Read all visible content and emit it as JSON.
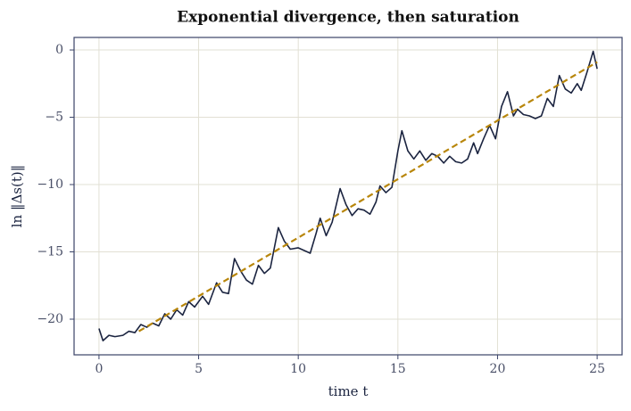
{
  "chart_data": {
    "type": "line",
    "title": "Exponential divergence, then saturation",
    "xlabel": "time t",
    "ylabel": "ln ‖Δs(t)‖",
    "xlim": [
      -1.25,
      26.25
    ],
    "ylim": [
      -22.65,
      0.93
    ],
    "xticks": [
      0,
      5,
      10,
      15,
      20,
      25
    ],
    "yticks": [
      {
        "value": -20,
        "label": "−20"
      },
      {
        "value": -15,
        "label": "−15"
      },
      {
        "value": -10,
        "label": "−10"
      },
      {
        "value": -5,
        "label": "−5"
      },
      0
    ],
    "grid": true,
    "series": [
      {
        "color": "#1b2440",
        "style": "solid",
        "x": [
          0,
          0.2,
          0.5,
          0.8,
          1.2,
          1.5,
          1.8,
          2.1,
          2.4,
          2.7,
          3.0,
          3.3,
          3.6,
          3.9,
          4.2,
          4.5,
          4.8,
          5.2,
          5.5,
          5.9,
          6.2,
          6.5,
          6.8,
          7.1,
          7.4,
          7.7,
          8.0,
          8.3,
          8.6,
          9.0,
          9.3,
          9.6,
          10.0,
          10.3,
          10.6,
          10.9,
          11.1,
          11.4,
          11.7,
          12.1,
          12.4,
          12.7,
          13.0,
          13.3,
          13.6,
          13.9,
          14.1,
          14.4,
          14.7,
          15.0,
          15.2,
          15.5,
          15.8,
          16.1,
          16.4,
          16.7,
          17.0,
          17.3,
          17.6,
          17.9,
          18.2,
          18.5,
          18.8,
          19.0,
          19.3,
          19.6,
          19.9,
          20.2,
          20.5,
          20.8,
          21.0,
          21.3,
          21.6,
          21.9,
          22.2,
          22.5,
          22.8,
          23.1,
          23.4,
          23.7,
          24.0,
          24.2,
          24.5,
          24.8,
          25.0
        ],
        "values": [
          -20.7,
          -21.6,
          -21.2,
          -21.3,
          -21.2,
          -20.9,
          -21.0,
          -20.4,
          -20.6,
          -20.3,
          -20.5,
          -19.6,
          -20.0,
          -19.3,
          -19.7,
          -18.7,
          -19.1,
          -18.3,
          -18.9,
          -17.3,
          -18.0,
          -18.1,
          -15.5,
          -16.4,
          -17.1,
          -17.4,
          -16.0,
          -16.6,
          -16.2,
          -13.2,
          -14.2,
          -14.8,
          -14.7,
          -14.9,
          -15.1,
          -13.6,
          -12.5,
          -13.8,
          -12.8,
          -10.3,
          -11.5,
          -12.3,
          -11.8,
          -11.9,
          -12.2,
          -11.3,
          -10.1,
          -10.6,
          -10.2,
          -7.5,
          -6.0,
          -7.5,
          -8.1,
          -7.5,
          -8.2,
          -7.7,
          -7.9,
          -8.4,
          -7.9,
          -8.3,
          -8.4,
          -8.1,
          -6.9,
          -7.7,
          -6.6,
          -5.6,
          -6.6,
          -4.2,
          -3.1,
          -4.9,
          -4.4,
          -4.8,
          -4.9,
          -5.1,
          -4.9,
          -3.6,
          -4.2,
          -1.9,
          -2.9,
          -3.2,
          -2.5,
          -3.0,
          -1.6,
          -0.1,
          -1.4
        ]
      },
      {
        "color": "#b8860b",
        "style": "dashed",
        "x": [
          2,
          25
        ],
        "values": [
          -20.9,
          -0.9
        ]
      }
    ]
  }
}
